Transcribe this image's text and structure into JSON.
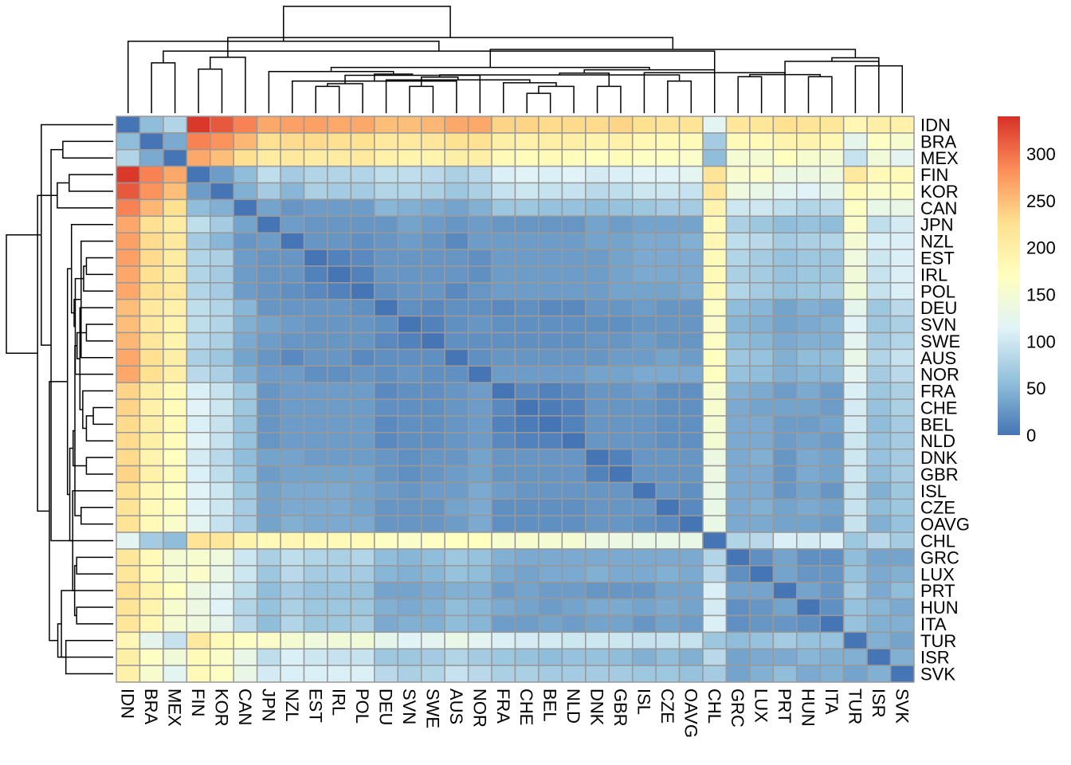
{
  "chart_data": {
    "type": "heatmap",
    "title": "",
    "xlabel": "",
    "ylabel": "",
    "row_labels": [
      "IDN",
      "BRA",
      "MEX",
      "FIN",
      "KOR",
      "CAN",
      "JPN",
      "NZL",
      "EST",
      "IRL",
      "POL",
      "DEU",
      "SVN",
      "SWE",
      "AUS",
      "NOR",
      "FRA",
      "CHE",
      "BEL",
      "NLD",
      "DNK",
      "GBR",
      "ISL",
      "CZE",
      "OAVG",
      "CHL",
      "GRC",
      "LUX",
      "PRT",
      "HUN",
      "ITA",
      "TUR",
      "ISR",
      "SVK"
    ],
    "col_labels": [
      "IDN",
      "BRA",
      "MEX",
      "FIN",
      "KOR",
      "CAN",
      "JPN",
      "NZL",
      "EST",
      "IRL",
      "POL",
      "DEU",
      "SVN",
      "SWE",
      "AUS",
      "NOR",
      "FRA",
      "CHE",
      "BEL",
      "NLD",
      "DNK",
      "GBR",
      "ISL",
      "CZE",
      "OAVG",
      "CHL",
      "GRC",
      "LUX",
      "PRT",
      "HUN",
      "ITA",
      "TUR",
      "ISR",
      "SVK"
    ],
    "values": [
      [
        0,
        55,
        80,
        335,
        315,
        290,
        265,
        270,
        270,
        265,
        265,
        250,
        250,
        255,
        265,
        265,
        235,
        235,
        230,
        230,
        230,
        235,
        225,
        220,
        220,
        120,
        215,
        215,
        225,
        220,
        215,
        185,
        200,
        195
      ],
      [
        55,
        0,
        40,
        290,
        280,
        255,
        225,
        230,
        230,
        225,
        225,
        210,
        210,
        215,
        225,
        225,
        200,
        195,
        200,
        200,
        190,
        195,
        185,
        180,
        180,
        70,
        180,
        180,
        190,
        190,
        185,
        125,
        165,
        155
      ],
      [
        80,
        40,
        0,
        265,
        250,
        225,
        205,
        210,
        205,
        205,
        210,
        195,
        190,
        190,
        200,
        200,
        180,
        175,
        180,
        175,
        170,
        175,
        165,
        165,
        160,
        55,
        150,
        150,
        170,
        155,
        150,
        95,
        145,
        120
      ],
      [
        335,
        290,
        265,
        0,
        30,
        55,
        90,
        70,
        80,
        80,
        80,
        90,
        90,
        85,
        75,
        85,
        110,
        115,
        110,
        115,
        105,
        110,
        115,
        115,
        120,
        220,
        155,
        160,
        135,
        135,
        140,
        210,
        180,
        180
      ],
      [
        315,
        280,
        250,
        30,
        0,
        45,
        70,
        50,
        75,
        70,
        70,
        80,
        80,
        75,
        65,
        75,
        95,
        100,
        95,
        95,
        85,
        90,
        100,
        100,
        95,
        215,
        140,
        130,
        120,
        115,
        125,
        180,
        160,
        165
      ],
      [
        290,
        255,
        225,
        55,
        45,
        0,
        35,
        25,
        30,
        30,
        30,
        50,
        45,
        40,
        35,
        45,
        65,
        65,
        60,
        60,
        55,
        60,
        65,
        70,
        70,
        190,
        100,
        100,
        90,
        80,
        85,
        165,
        130,
        130
      ],
      [
        265,
        225,
        205,
        90,
        70,
        35,
        0,
        30,
        25,
        25,
        25,
        25,
        35,
        30,
        25,
        30,
        25,
        25,
        25,
        25,
        35,
        30,
        35,
        35,
        35,
        180,
        75,
        65,
        55,
        60,
        55,
        160,
        90,
        105
      ],
      [
        270,
        230,
        210,
        70,
        50,
        25,
        30,
        0,
        25,
        25,
        20,
        25,
        30,
        25,
        15,
        30,
        30,
        30,
        30,
        30,
        35,
        35,
        40,
        40,
        45,
        185,
        90,
        85,
        70,
        75,
        80,
        150,
        110,
        110
      ],
      [
        270,
        230,
        205,
        80,
        75,
        30,
        25,
        25,
        0,
        10,
        15,
        25,
        25,
        25,
        25,
        20,
        30,
        30,
        30,
        30,
        30,
        35,
        40,
        40,
        40,
        180,
        80,
        70,
        60,
        65,
        65,
        140,
        100,
        110
      ],
      [
        265,
        225,
        205,
        80,
        70,
        30,
        25,
        25,
        10,
        0,
        10,
        25,
        25,
        25,
        25,
        20,
        30,
        30,
        30,
        30,
        30,
        35,
        40,
        40,
        40,
        180,
        75,
        70,
        60,
        65,
        65,
        145,
        95,
        110
      ],
      [
        265,
        225,
        210,
        80,
        70,
        30,
        25,
        20,
        15,
        10,
        0,
        20,
        25,
        25,
        15,
        25,
        30,
        30,
        30,
        30,
        30,
        35,
        35,
        35,
        40,
        180,
        80,
        70,
        60,
        65,
        70,
        145,
        95,
        110
      ],
      [
        250,
        210,
        195,
        90,
        80,
        50,
        25,
        25,
        25,
        25,
        20,
        0,
        20,
        15,
        20,
        20,
        15,
        20,
        15,
        15,
        25,
        25,
        30,
        25,
        25,
        165,
        55,
        50,
        35,
        45,
        40,
        125,
        65,
        85
      ],
      [
        250,
        210,
        190,
        90,
        80,
        45,
        35,
        30,
        25,
        25,
        25,
        20,
        0,
        10,
        20,
        25,
        20,
        20,
        20,
        20,
        20,
        20,
        25,
        25,
        25,
        160,
        50,
        45,
        35,
        40,
        45,
        115,
        65,
        75
      ],
      [
        255,
        215,
        190,
        85,
        75,
        40,
        30,
        25,
        25,
        25,
        25,
        15,
        10,
        0,
        20,
        20,
        20,
        20,
        20,
        20,
        25,
        25,
        30,
        25,
        25,
        165,
        55,
        50,
        40,
        45,
        45,
        120,
        70,
        80
      ],
      [
        265,
        225,
        200,
        75,
        65,
        35,
        25,
        15,
        25,
        25,
        15,
        20,
        20,
        20,
        0,
        20,
        25,
        25,
        25,
        25,
        25,
        30,
        30,
        35,
        30,
        170,
        65,
        60,
        45,
        55,
        55,
        130,
        80,
        95
      ],
      [
        265,
        225,
        200,
        85,
        75,
        45,
        30,
        30,
        20,
        20,
        25,
        20,
        25,
        20,
        20,
        0,
        30,
        30,
        30,
        30,
        35,
        35,
        40,
        40,
        40,
        170,
        60,
        55,
        45,
        50,
        50,
        120,
        70,
        85
      ],
      [
        235,
        200,
        180,
        110,
        95,
        65,
        25,
        30,
        30,
        30,
        30,
        15,
        20,
        20,
        25,
        30,
        0,
        15,
        10,
        15,
        25,
        25,
        30,
        20,
        20,
        155,
        45,
        40,
        30,
        40,
        30,
        110,
        65,
        75
      ],
      [
        235,
        195,
        175,
        115,
        100,
        65,
        25,
        30,
        30,
        30,
        30,
        20,
        20,
        20,
        25,
        30,
        15,
        0,
        5,
        10,
        25,
        25,
        25,
        20,
        20,
        155,
        40,
        35,
        35,
        35,
        30,
        105,
        60,
        75
      ],
      [
        230,
        200,
        180,
        110,
        95,
        60,
        25,
        30,
        30,
        30,
        30,
        15,
        20,
        20,
        25,
        30,
        10,
        5,
        0,
        10,
        25,
        25,
        25,
        20,
        20,
        150,
        40,
        40,
        30,
        30,
        35,
        105,
        55,
        70
      ],
      [
        230,
        200,
        175,
        115,
        95,
        60,
        25,
        30,
        30,
        30,
        30,
        15,
        20,
        20,
        25,
        30,
        15,
        10,
        10,
        0,
        25,
        25,
        25,
        20,
        20,
        150,
        40,
        40,
        30,
        35,
        30,
        100,
        60,
        70
      ],
      [
        230,
        190,
        170,
        105,
        85,
        55,
        35,
        35,
        30,
        30,
        30,
        25,
        20,
        25,
        25,
        35,
        25,
        25,
        25,
        25,
        0,
        10,
        25,
        25,
        25,
        135,
        40,
        45,
        25,
        40,
        35,
        100,
        60,
        70
      ],
      [
        235,
        195,
        175,
        110,
        90,
        60,
        30,
        35,
        35,
        35,
        35,
        25,
        20,
        25,
        30,
        35,
        25,
        25,
        25,
        25,
        10,
        0,
        25,
        25,
        25,
        135,
        40,
        40,
        25,
        40,
        35,
        100,
        55,
        70
      ],
      [
        225,
        185,
        165,
        115,
        100,
        65,
        35,
        40,
        40,
        40,
        35,
        30,
        25,
        30,
        30,
        40,
        30,
        25,
        25,
        25,
        25,
        25,
        0,
        25,
        20,
        130,
        40,
        40,
        25,
        35,
        25,
        95,
        45,
        65
      ],
      [
        220,
        180,
        165,
        115,
        100,
        70,
        35,
        40,
        40,
        40,
        35,
        25,
        25,
        25,
        35,
        40,
        20,
        20,
        20,
        20,
        25,
        25,
        25,
        0,
        15,
        130,
        40,
        45,
        35,
        40,
        35,
        95,
        55,
        65
      ],
      [
        220,
        180,
        160,
        120,
        95,
        70,
        35,
        45,
        40,
        40,
        40,
        25,
        25,
        25,
        30,
        40,
        20,
        20,
        20,
        20,
        25,
        25,
        20,
        15,
        0,
        130,
        40,
        40,
        35,
        35,
        30,
        95,
        45,
        60
      ],
      [
        120,
        70,
        55,
        220,
        215,
        190,
        180,
        185,
        180,
        180,
        180,
        165,
        160,
        165,
        170,
        170,
        155,
        155,
        150,
        150,
        135,
        135,
        130,
        130,
        130,
        0,
        80,
        85,
        110,
        105,
        110,
        65,
        85,
        70
      ],
      [
        215,
        180,
        150,
        155,
        140,
        100,
        75,
        90,
        80,
        75,
        80,
        55,
        50,
        55,
        65,
        60,
        45,
        40,
        40,
        40,
        40,
        40,
        40,
        40,
        40,
        80,
        0,
        20,
        35,
        20,
        20,
        55,
        35,
        35
      ],
      [
        215,
        180,
        150,
        160,
        130,
        100,
        65,
        85,
        70,
        70,
        70,
        50,
        45,
        50,
        60,
        55,
        40,
        35,
        40,
        40,
        45,
        40,
        40,
        45,
        40,
        85,
        20,
        0,
        35,
        25,
        25,
        60,
        40,
        45
      ],
      [
        225,
        190,
        170,
        135,
        120,
        90,
        55,
        70,
        60,
        60,
        60,
        35,
        35,
        40,
        45,
        45,
        30,
        35,
        30,
        30,
        25,
        25,
        25,
        35,
        35,
        110,
        35,
        35,
        0,
        35,
        25,
        70,
        40,
        55
      ],
      [
        220,
        190,
        155,
        135,
        115,
        80,
        60,
        75,
        65,
        65,
        65,
        45,
        40,
        45,
        55,
        50,
        40,
        35,
        30,
        35,
        40,
        40,
        35,
        40,
        35,
        105,
        20,
        25,
        35,
        0,
        20,
        60,
        50,
        40
      ],
      [
        215,
        185,
        150,
        140,
        125,
        85,
        55,
        80,
        65,
        65,
        70,
        40,
        45,
        45,
        55,
        50,
        30,
        30,
        35,
        30,
        35,
        35,
        25,
        35,
        30,
        110,
        20,
        25,
        25,
        20,
        0,
        60,
        45,
        45
      ],
      [
        185,
        125,
        95,
        210,
        180,
        165,
        160,
        150,
        140,
        145,
        145,
        125,
        115,
        120,
        130,
        120,
        110,
        105,
        105,
        100,
        100,
        100,
        95,
        95,
        95,
        65,
        55,
        60,
        70,
        60,
        60,
        0,
        45,
        35
      ],
      [
        200,
        165,
        145,
        180,
        160,
        130,
        90,
        110,
        100,
        95,
        95,
        65,
        65,
        70,
        80,
        70,
        65,
        60,
        55,
        60,
        60,
        55,
        45,
        55,
        45,
        85,
        35,
        40,
        40,
        50,
        45,
        45,
        0,
        45
      ],
      [
        195,
        155,
        120,
        180,
        165,
        130,
        105,
        110,
        110,
        110,
        110,
        85,
        75,
        80,
        95,
        85,
        75,
        75,
        70,
        70,
        70,
        70,
        65,
        65,
        60,
        70,
        35,
        45,
        55,
        40,
        45,
        35,
        45,
        0
      ]
    ],
    "color_scale": {
      "min": 0,
      "max": 340,
      "stops": [
        "#4575b4",
        "#91bfdb",
        "#e0f3f8",
        "#ffffbf",
        "#fee090",
        "#fc8d59",
        "#d73027"
      ],
      "legend_ticks": [
        0,
        50,
        100,
        150,
        200,
        250,
        300
      ],
      "legend_placement": "right"
    },
    "cell_border_color": "#999999",
    "row_dendrogram": "left",
    "col_dendrogram": "top",
    "grid": true
  }
}
